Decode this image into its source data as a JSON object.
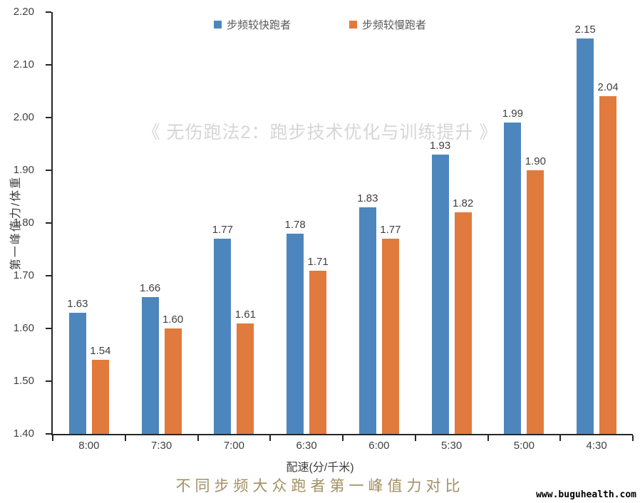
{
  "watermark": "《 无伤跑法2：跑步技术优化与训练提升 》",
  "footer": {
    "caption": "不同步频大众跑者第一峰值力对比",
    "website": "www.buguhealth.com"
  },
  "colors": {
    "fast_bar": "#4d86bd",
    "slow_bar": "#e17a3d",
    "axis": "#262626",
    "tick_label": "#404040",
    "legend_text": "#595959",
    "watermark": "#d6d6d6",
    "caption": "#a39064"
  },
  "chart_data": {
    "type": "bar",
    "categories": [
      "8:00",
      "7:30",
      "7:00",
      "6:30",
      "6:00",
      "5:30",
      "5:00",
      "4:30"
    ],
    "series": [
      {
        "name": "步频较快跑者",
        "color": "#4d86bd",
        "values": [
          1.63,
          1.66,
          1.77,
          1.78,
          1.83,
          1.93,
          1.99,
          2.15
        ]
      },
      {
        "name": "步频较慢跑者",
        "color": "#e17a3d",
        "values": [
          1.54,
          1.6,
          1.61,
          1.71,
          1.77,
          1.82,
          1.9,
          2.04
        ]
      }
    ],
    "title": "",
    "xlabel": "配速(分/千米)",
    "ylabel": "第一峰值力/体重",
    "ylim": [
      1.4,
      2.2
    ],
    "ytick_step": 0.1,
    "yticks": [
      "2.20",
      "2.10",
      "2.00",
      "1.90",
      "1.80",
      "1.70",
      "1.60",
      "1.50",
      "1.40"
    ],
    "grid": false,
    "legend_position": "top",
    "value_labels": true
  }
}
